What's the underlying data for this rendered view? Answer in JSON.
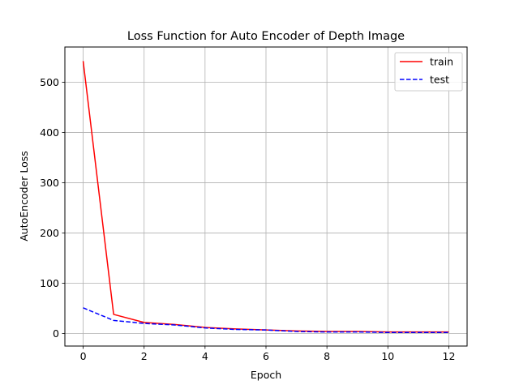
{
  "chart_data": {
    "type": "line",
    "title": "Loss Function for Auto Encoder of Depth Image",
    "xlabel": "Epoch",
    "ylabel": "AutoEncoder Loss",
    "xlim": [
      -0.6,
      12.6
    ],
    "ylim": [
      -25,
      570
    ],
    "xticks": [
      0,
      2,
      4,
      6,
      8,
      10,
      12
    ],
    "yticks": [
      0,
      100,
      200,
      300,
      400,
      500
    ],
    "grid": true,
    "legend_position": "top-right",
    "x": [
      0,
      1,
      2,
      3,
      4,
      5,
      6,
      7,
      8,
      9,
      10,
      11,
      12
    ],
    "series": [
      {
        "name": "train",
        "color": "#ff0000",
        "dash": "solid",
        "values": [
          542,
          38,
          22,
          18,
          12,
          9,
          7,
          5,
          4,
          4,
          3,
          3,
          3
        ]
      },
      {
        "name": "test",
        "color": "#0000ff",
        "dash": "dashed",
        "values": [
          51,
          26,
          20,
          17,
          11,
          8,
          7,
          4,
          3,
          3,
          2,
          2,
          2
        ]
      }
    ]
  }
}
